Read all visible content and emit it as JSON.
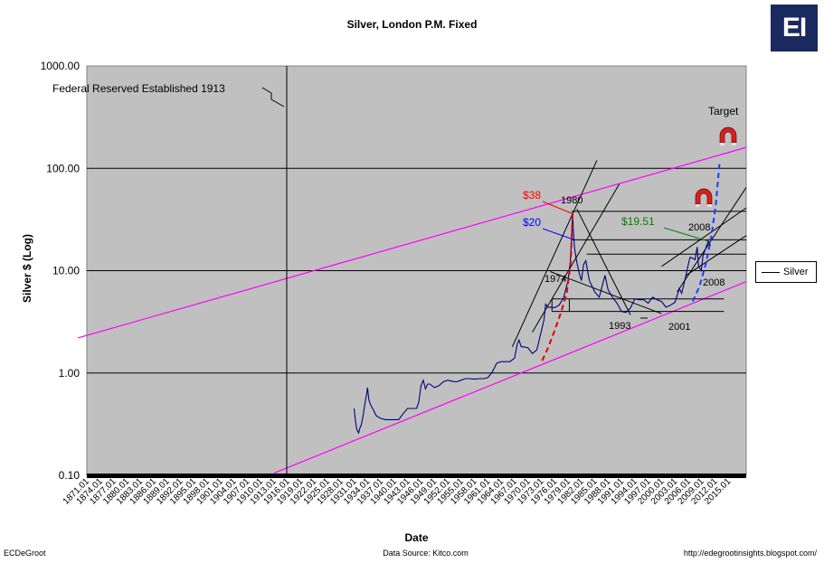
{
  "title": "Silver, London P.M. Fixed",
  "logo_text": "EI",
  "footer": {
    "left": "ECDeGroot",
    "center": "Data Source:  Kitco.com",
    "right": "http://edegrootinsights.blogspot.com/"
  },
  "chart_data": {
    "type": "line",
    "title": "Silver, London P.M. Fixed",
    "xlabel": "Date",
    "ylabel": "Silver $ (Log)",
    "yscale": "log",
    "ylim": [
      0.1,
      1000
    ],
    "xlim": [
      1871,
      2019
    ],
    "y_tick_labels": [
      "1000.00",
      "100.00",
      "10.00",
      "1.00",
      "0.10"
    ],
    "y_tick_values": [
      1000,
      100,
      10,
      1,
      0.1
    ],
    "x_tick_labels": [
      "1871.01",
      "1874.01",
      "1877.01",
      "1880.01",
      "1883.01",
      "1886.01",
      "1889.01",
      "1892.01",
      "1895.01",
      "1898.01",
      "1901.01",
      "1904.01",
      "1907.01",
      "1910.01",
      "1913.01",
      "1916.01",
      "1919.01",
      "1922.01",
      "1925.01",
      "1928.01",
      "1931.01",
      "1934.01",
      "1937.01",
      "1940.01",
      "1943.01",
      "1946.01",
      "1949.01",
      "1952.01",
      "1955.01",
      "1958.01",
      "1961.01",
      "1964.01",
      "1967.01",
      "1970.01",
      "1973.01",
      "1976.01",
      "1979.01",
      "1982.01",
      "1985.01",
      "1988.01",
      "1991.01",
      "1994.01",
      "1997.01",
      "2000.01",
      "2003.01",
      "2006.01",
      "2009.01",
      "2012.01",
      "2015.01"
    ],
    "grid": "horizontal",
    "legend": {
      "position": "right",
      "entries": [
        "Silver"
      ]
    },
    "series": [
      {
        "name": "Silver",
        "color": "#00007a",
        "x": [
          1931.0,
          1931.3,
          1931.6,
          1932.0,
          1932.3,
          1932.6,
          1933.0,
          1933.4,
          1933.8,
          1934.0,
          1934.3,
          1934.6,
          1935.0,
          1935.3,
          1935.6,
          1936.0,
          1937.0,
          1938.0,
          1939.0,
          1940.0,
          1941.0,
          1942.0,
          1943.0,
          1944.0,
          1945.0,
          1945.5,
          1946.0,
          1946.5,
          1947.0,
          1947.5,
          1948.0,
          1949.0,
          1950.0,
          1951.0,
          1952.0,
          1953.0,
          1954.0,
          1955.0,
          1956.0,
          1957.0,
          1958.0,
          1959.0,
          1960.0,
          1961.0,
          1962.0,
          1963.0,
          1964.0,
          1965.0,
          1966.0,
          1967.0,
          1967.6,
          1968.0,
          1968.5,
          1969.0,
          1970.0,
          1971.0,
          1972.0,
          1973.0,
          1973.6,
          1974.0,
          1974.5,
          1975.0,
          1976.0,
          1977.0,
          1978.0,
          1979.0,
          1979.5,
          1979.8,
          1980.05,
          1980.2,
          1980.5,
          1981.0,
          1981.5,
          1982.0,
          1982.5,
          1983.0,
          1983.4,
          1983.8,
          1984.3,
          1985.0,
          1986.0,
          1987.3,
          1988.0,
          1989.0,
          1990.0,
          1991.0,
          1992.0,
          1993.0,
          1994.0,
          1995.0,
          1996.0,
          1997.0,
          1998.0,
          1999.0,
          2000.0,
          2001.0,
          2002.0,
          2003.0,
          2004.0,
          2004.5,
          2005.0,
          2006.0,
          2006.4,
          2007.0,
          2007.5,
          2008.0,
          2008.3,
          2008.9,
          2009.3,
          2010.0,
          2010.5,
          2011.0
        ],
        "y": [
          0.45,
          0.34,
          0.28,
          0.26,
          0.29,
          0.31,
          0.38,
          0.5,
          0.62,
          0.72,
          0.55,
          0.5,
          0.46,
          0.44,
          0.41,
          0.38,
          0.36,
          0.35,
          0.35,
          0.35,
          0.35,
          0.4,
          0.45,
          0.45,
          0.45,
          0.52,
          0.75,
          0.85,
          0.7,
          0.78,
          0.78,
          0.72,
          0.75,
          0.82,
          0.85,
          0.83,
          0.82,
          0.85,
          0.88,
          0.88,
          0.87,
          0.88,
          0.88,
          0.9,
          1.02,
          1.25,
          1.29,
          1.29,
          1.29,
          1.4,
          1.9,
          2.1,
          1.8,
          1.8,
          1.77,
          1.55,
          1.68,
          2.55,
          3.3,
          4.7,
          4.4,
          4.4,
          4.35,
          4.6,
          5.4,
          8.0,
          12.0,
          20.0,
          36.0,
          24.0,
          16.0,
          12.0,
          9.5,
          8.0,
          11.5,
          12.5,
          10.0,
          8.0,
          7.2,
          6.2,
          5.5,
          9.0,
          6.5,
          5.5,
          4.8,
          4.0,
          3.9,
          4.3,
          5.3,
          5.2,
          5.2,
          4.8,
          5.5,
          5.2,
          5.0,
          4.4,
          4.6,
          4.9,
          6.7,
          6.0,
          7.3,
          11.5,
          13.5,
          13.2,
          12.8,
          17.0,
          11.0,
          10.0,
          14.0,
          17.0,
          19.5,
          17.5
        ]
      }
    ],
    "annotations": {
      "event_text": "Federal Reserved Established 1913",
      "event_year": 1913,
      "target_text": "Target",
      "year_labels": [
        "1980",
        "1974",
        "1993",
        "2001",
        "2008",
        "2008"
      ],
      "price_labels": [
        {
          "text": "$38",
          "color": "#ff0000"
        },
        {
          "text": "$20",
          "color": "#0000ff"
        },
        {
          "text": "$19.51",
          "color": "#008000"
        }
      ],
      "horizontal_levels": [
        38,
        20,
        14.5,
        10.0,
        5.3,
        4.0
      ],
      "channel_color": "#ff00ff",
      "channel_lower": {
        "x": [
          1913.0,
          2019.0
        ],
        "y": [
          0.105,
          7.8
        ]
      },
      "channel_upper": {
        "x": [
          1869.0,
          2019.0
        ],
        "y": [
          2.2,
          160.0
        ]
      },
      "trend_lines": [
        {
          "x": [
            1966.5,
            1985.5
          ],
          "y": [
            1.8,
            120.0
          ]
        },
        {
          "x": [
            1971.0,
            1990.5
          ],
          "y": [
            2.5,
            70.0
          ]
        },
        {
          "x": [
            1981.0,
            1993.0
          ],
          "y": [
            40.0,
            3.7
          ]
        },
        {
          "x": [
            1975.0,
            2000.0
          ],
          "y": [
            9.8,
            3.8
          ]
        },
        {
          "x": [
            2000.0,
            2019.0
          ],
          "y": [
            11.0,
            41.0
          ]
        },
        {
          "x": [
            2003.5,
            2019.0
          ],
          "y": [
            6.2,
            65.0
          ]
        },
        {
          "x": [
            2005.5,
            2019.0
          ],
          "y": [
            9.0,
            22.0
          ]
        }
      ],
      "projection_red": {
        "x": [
          1973.2,
          1974.5,
          1976.0,
          1977.5,
          1978.7,
          1979.6,
          1980.05
        ],
        "y": [
          1.32,
          1.75,
          2.6,
          4.0,
          6.0,
          12.0,
          36.0
        ]
      },
      "projection_blue": {
        "x": [
          2007.0,
          2008.5,
          2010.0,
          2011.2,
          2012.2,
          2013.0
        ],
        "y": [
          5.0,
          7.0,
          12.0,
          22.0,
          45.0,
          110.0
        ]
      }
    }
  }
}
